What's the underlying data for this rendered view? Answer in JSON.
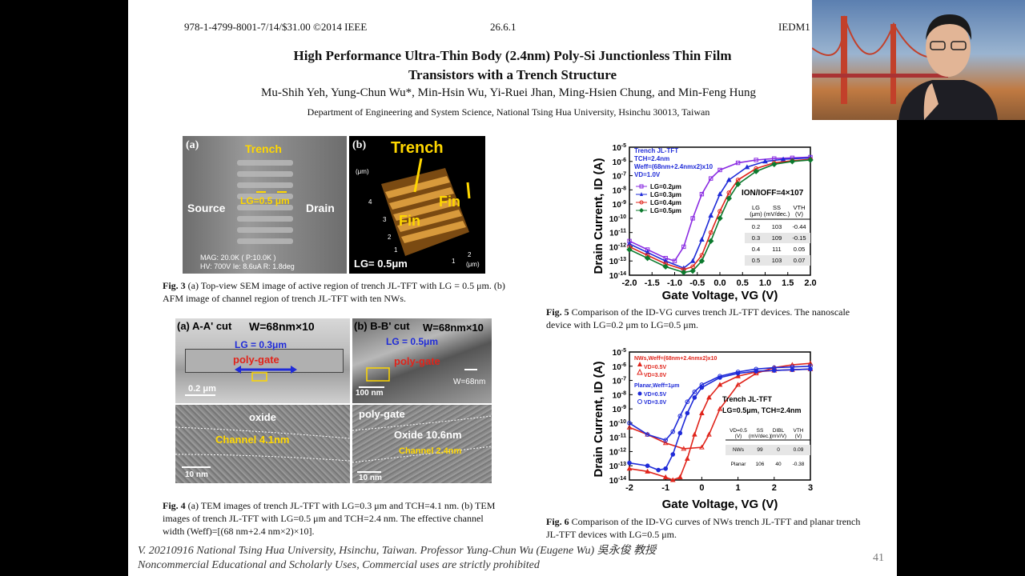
{
  "header": {
    "left": "978-1-4799-8001-7/14/$31.00 ©2014 IEEE",
    "center": "26.6.1",
    "right": "IEDM1"
  },
  "paper": {
    "title_line1": "High Performance Ultra-Thin Body (2.4nm) Poly-Si Junctionless Thin Film",
    "title_line2": "Transistors with a Trench Structure",
    "authors": "Mu-Shih Yeh, Yung-Chun Wu*, Min-Hsin Wu, Yi-Ruei Jhan, Ming-Hsien Chung, and Min-Feng Hung",
    "affiliation": "Department of Engineering and System Science, National Tsing Hua University, Hsinchu 30013, Taiwan"
  },
  "fig3": {
    "a": {
      "panel": "(a)",
      "label_trench": "Trench",
      "label_lg": "LG=0.5 μm",
      "label_source": "Source",
      "label_drain": "Drain",
      "meta1": "MAG: 20.0K   ( P:10.0K )",
      "meta2": "HV: 700V     Ie: 8.6uA     R: 1.8deg"
    },
    "b": {
      "panel": "(b)",
      "label_trench": "Trench",
      "label_fin1": "Fin",
      "label_fin2": "Fin",
      "label_lg": "LG= 0.5μm",
      "axis_um": "(μm)",
      "axis_4": "4",
      "axis_3": "3",
      "axis_2": "2",
      "axis_1": "1",
      "axis_r2": "2",
      "axis_r1": "1",
      "axis_um2": "(μm)"
    },
    "caption_label": "Fig. 3",
    "caption_text": " (a) Top-view SEM image of active region of trench JL-TFT with LG = 0.5 μm. (b) AFM image of channel region of trench JL-TFT with ten NWs."
  },
  "fig4": {
    "a_title": "(a) A-A' cut",
    "a_width": "W=68nm×10",
    "a_lg": "LG = 0.3μm",
    "a_gate": "poly-gate",
    "a_scale": "0.2 μm",
    "b_title": "(b) B-B' cut",
    "b_width": "W=68nm×10",
    "b_lg": "LG = 0.5μm",
    "b_gate": "poly-gate",
    "b_w": "W=68nm",
    "b_scale": "100 nm",
    "c_oxide": "oxide",
    "c_channel": "Channel  4.1nm",
    "c_scale": "10 nm",
    "d_gate": "poly-gate",
    "d_oxide": "Oxide 10.6nm",
    "d_channel": "Channel 2.4nm",
    "d_scale": "10 nm",
    "caption_label": "Fig. 4",
    "caption_text": " (a) TEM images of trench JL-TFT with LG=0.3 μm and TCH=4.1 nm. (b) TEM images of trench JL-TFT with LG=0.5 μm and TCH=2.4 nm. The effective channel width (Weff)=[(68 nm+2.4 nm×2)×10]."
  },
  "fig5": {
    "ylabel": "Drain Current, ID (A)",
    "xlabel": "Gate Voltage, VG (V)",
    "yticks": [
      "10-5",
      "10-6",
      "10-7",
      "10-8",
      "10-9",
      "10-10",
      "10-11",
      "10-12",
      "10-13",
      "10-14"
    ],
    "xticks": [
      "-2.0",
      "-1.5",
      "-1.0",
      "-0.5",
      "0.0",
      "0.5",
      "1.0",
      "1.5",
      "2.0"
    ],
    "legend_head": [
      "Trench JL-TFT",
      "TCH=2.4nm",
      "Weff=(68nm+2.4nmx2)x10",
      "VD=1.0V"
    ],
    "legend": [
      "LG=0.2μm",
      "LG=0.3μm",
      "LG=0.4μm",
      "LG=0.5μm"
    ],
    "ratio": "ION/IOFF=4×107",
    "table_head": [
      "LG (μm)",
      "SS (mV/dec.)",
      "VTH (V)"
    ],
    "table_rows": [
      [
        "0.2",
        "103",
        "-0.44"
      ],
      [
        "0.3",
        "109",
        "-0.15"
      ],
      [
        "0.4",
        "111",
        "0.05"
      ],
      [
        "0.5",
        "103",
        "0.07"
      ]
    ],
    "caption_label": "Fig. 5",
    "caption_text": " Comparison of the ID-VG curves trench JL-TFT devices. The nanoscale device with LG=0.2 μm to LG=0.5 μm."
  },
  "fig6": {
    "ylabel": "Drain Current, ID (A)",
    "xlabel": "Gate Voltage, VG (V)",
    "yticks": [
      "10-5",
      "10-6",
      "10-7",
      "10-8",
      "10-9",
      "10-10",
      "10-11",
      "10-12",
      "10-13",
      "10-14"
    ],
    "xticks": [
      "-2",
      "-1",
      "0",
      "1",
      "2",
      "3"
    ],
    "legend_nw": "NWs,Weff=(68nm+2.4nmx2)x10",
    "legend_nw1": "VD=0.5V",
    "legend_nw2": "VD=3.0V",
    "legend_pl": "Planar,Weff=1μm",
    "legend_pl1": "VD=0.5V",
    "legend_pl2": "VD=3.0V",
    "note1": "Trench JL-TFT",
    "note2": "LG=0.5μm, TCH=2.4nm",
    "table_head": [
      "VD=0.5 (V)",
      "SS (mV/dec.)",
      "DIBL (mV/V)",
      "VTH (V)"
    ],
    "table_rows": [
      [
        "NWs",
        "99",
        "0",
        "0.09"
      ],
      [
        "Planar",
        "106",
        "40",
        "-0.38"
      ]
    ],
    "caption_label": "Fig. 6",
    "caption_text": " Comparison of the ID-VG curves of NWs trench JL-TFT and planar trench JL-TFT devices with LG=0.5 μm."
  },
  "footer": {
    "line1": "V. 20210916 National Tsing Hua University, Hsinchu, Taiwan. Professor Yung-Chun Wu (Eugene Wu) 吳永俊 教授",
    "line2": "Noncommercial Educational and Scholarly Uses, Commercial uses are strictly prohibited",
    "page": "41"
  },
  "chart_data": [
    {
      "type": "line",
      "xlabel": "Gate Voltage, VG (V)",
      "ylabel": "Drain Current, ID (A)",
      "xlim": [
        -2.0,
        2.0
      ],
      "ylim_log10": [
        -14,
        -5
      ],
      "series": [
        {
          "name": "LG=0.2μm",
          "color": "#8a2be2",
          "x": [
            -2.0,
            -1.6,
            -1.2,
            -1.0,
            -0.8,
            -0.6,
            -0.4,
            -0.2,
            0.0,
            0.4,
            0.8,
            1.2,
            1.6,
            2.0
          ],
          "log10_y": [
            -11.6,
            -12.2,
            -12.8,
            -13.0,
            -12.0,
            -10.0,
            -8.3,
            -7.2,
            -6.6,
            -6.1,
            -5.9,
            -5.8,
            -5.75,
            -5.7
          ]
        },
        {
          "name": "LG=0.3μm",
          "color": "#1f2bd8",
          "x": [
            -2.0,
            -1.6,
            -1.2,
            -0.8,
            -0.6,
            -0.4,
            -0.2,
            0.0,
            0.2,
            0.6,
            1.0,
            1.4,
            2.0
          ],
          "log10_y": [
            -11.8,
            -12.4,
            -13.0,
            -13.5,
            -13.0,
            -11.5,
            -9.8,
            -8.3,
            -7.3,
            -6.4,
            -6.0,
            -5.85,
            -5.75
          ]
        },
        {
          "name": "LG=0.4μm",
          "color": "#e0241b",
          "x": [
            -2.0,
            -1.6,
            -1.2,
            -0.8,
            -0.6,
            -0.4,
            -0.2,
            0.0,
            0.2,
            0.4,
            0.8,
            1.2,
            1.6,
            2.0
          ],
          "log10_y": [
            -12.0,
            -12.6,
            -13.2,
            -13.6,
            -13.4,
            -12.6,
            -11.0,
            -9.5,
            -8.2,
            -7.3,
            -6.5,
            -6.1,
            -5.95,
            -5.85
          ]
        },
        {
          "name": "LG=0.5μm",
          "color": "#0c7a2e",
          "x": [
            -2.0,
            -1.6,
            -1.2,
            -0.8,
            -0.6,
            -0.4,
            -0.2,
            0.0,
            0.2,
            0.4,
            0.8,
            1.2,
            1.6,
            2.0
          ],
          "log10_y": [
            -12.2,
            -12.8,
            -13.4,
            -13.8,
            -13.7,
            -13.0,
            -11.6,
            -10.0,
            -8.6,
            -7.6,
            -6.7,
            -6.2,
            -6.0,
            -5.9
          ]
        }
      ]
    },
    {
      "type": "line",
      "xlabel": "Gate Voltage, VG (V)",
      "ylabel": "Drain Current, ID (A)",
      "xlim": [
        -2,
        3
      ],
      "ylim_log10": [
        -14,
        -5
      ],
      "series": [
        {
          "name": "NWs VD=0.5V",
          "color": "#e0241b",
          "x": [
            -2,
            -1.5,
            -1.0,
            -0.8,
            -0.6,
            -0.4,
            -0.2,
            0,
            0.2,
            0.5,
            1,
            1.5,
            2,
            2.5,
            3
          ],
          "log10_y": [
            -13.2,
            -13.4,
            -13.8,
            -14.0,
            -13.8,
            -12.5,
            -10.8,
            -9.3,
            -8.2,
            -7.3,
            -6.7,
            -6.4,
            -6.3,
            -6.25,
            -6.2
          ]
        },
        {
          "name": "NWs VD=3.0V",
          "color": "#e0241b",
          "x": [
            -2,
            -1.5,
            -1,
            -0.5,
            0,
            0.2,
            0.5,
            1,
            1.5,
            2,
            2.5,
            3
          ],
          "log10_y": [
            -10.3,
            -10.8,
            -11.4,
            -11.8,
            -11.7,
            -10.8,
            -9.0,
            -7.3,
            -6.5,
            -6.1,
            -5.9,
            -5.8
          ]
        },
        {
          "name": "Planar VD=0.5V",
          "color": "#1f2bd8",
          "x": [
            -2,
            -1.5,
            -1.2,
            -1.0,
            -0.8,
            -0.6,
            -0.4,
            -0.2,
            0,
            0.5,
            1,
            1.5,
            2,
            2.5,
            3
          ],
          "log10_y": [
            -12.8,
            -13.0,
            -13.3,
            -13.2,
            -12.2,
            -10.7,
            -9.3,
            -8.2,
            -7.5,
            -6.8,
            -6.5,
            -6.35,
            -6.3,
            -6.25,
            -6.2
          ]
        },
        {
          "name": "Planar VD=3.0V",
          "color": "#1f2bd8",
          "x": [
            -2,
            -1.5,
            -1.0,
            -0.8,
            -0.6,
            -0.4,
            -0.2,
            0,
            0.5,
            1,
            1.5,
            2,
            2.5,
            3
          ],
          "log10_y": [
            -10.0,
            -10.8,
            -11.2,
            -10.6,
            -9.5,
            -8.5,
            -7.8,
            -7.3,
            -6.7,
            -6.4,
            -6.2,
            -6.1,
            -6.05,
            -6.0
          ]
        }
      ]
    }
  ]
}
